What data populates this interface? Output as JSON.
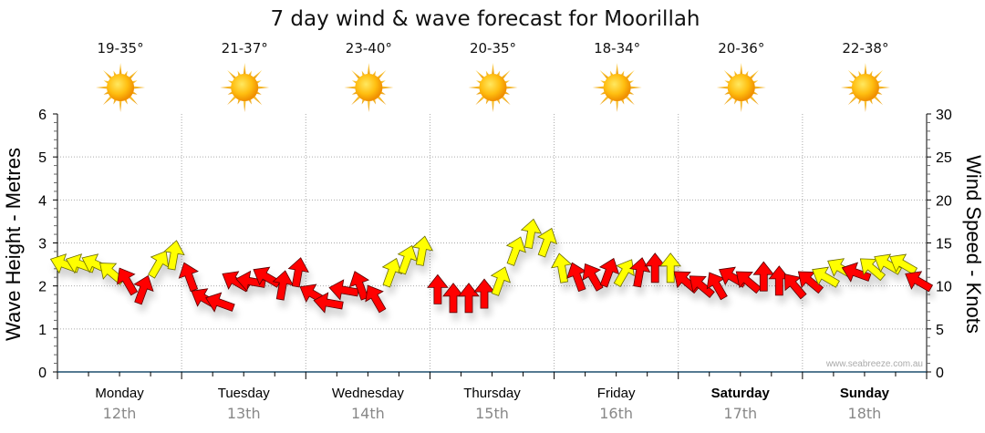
{
  "chart_data": {
    "type": "scatter",
    "title": "7 day wind & wave forecast for Moorillah",
    "ylabel_left": "Wave Height - Metres",
    "ylabel_right": "Wind Speed - Knots",
    "ylim_left": [
      0,
      6
    ],
    "ylim_right": [
      0,
      30
    ],
    "yticks_left": [
      "0",
      "1",
      "2",
      "3",
      "4",
      "5",
      "6"
    ],
    "yticks_right": [
      "0",
      "5",
      "10",
      "15",
      "20",
      "25",
      "30"
    ],
    "grid": true,
    "credit": "www.seabreeze.com.au",
    "days": [
      {
        "name": "Monday",
        "date": "12th",
        "temp": "19-35°",
        "icon": "sun-icon",
        "bold": false
      },
      {
        "name": "Tuesday",
        "date": "13th",
        "temp": "21-37°",
        "icon": "sun-icon",
        "bold": false
      },
      {
        "name": "Wednesday",
        "date": "14th",
        "temp": "23-40°",
        "icon": "sun-icon",
        "bold": false
      },
      {
        "name": "Thursday",
        "date": "15th",
        "temp": "20-35°",
        "icon": "sun-icon",
        "bold": false
      },
      {
        "name": "Friday",
        "date": "16th",
        "temp": "18-34°",
        "icon": "sun-icon",
        "bold": false
      },
      {
        "name": "Saturday",
        "date": "17th",
        "temp": "20-36°",
        "icon": "sun-icon",
        "bold": true
      },
      {
        "name": "Sunday",
        "date": "18th",
        "temp": "22-38°",
        "icon": "sun-icon",
        "bold": true
      }
    ],
    "colors": {
      "strong": "#ff0000",
      "moderate": "#ffff00",
      "outline": "#333333"
    },
    "wind_series": {
      "name": "Wind (knots, direction in degrees arrow points toward)",
      "x_hours": [
        0,
        3,
        6,
        9,
        12,
        15,
        18,
        21,
        24,
        27,
        30,
        33,
        36,
        39,
        42,
        45,
        48,
        51,
        54,
        57,
        60,
        63,
        66,
        69,
        72,
        75,
        78,
        81,
        84,
        87,
        90,
        93,
        96,
        99,
        102,
        105,
        108,
        111,
        114,
        117,
        120,
        123,
        126,
        129,
        132,
        135,
        138,
        141,
        144,
        147,
        150,
        153,
        156,
        159,
        162,
        165
      ],
      "speed_kn": [
        12.5,
        12.5,
        12.5,
        11.5,
        10.5,
        9.5,
        12.5,
        13.5,
        11,
        8.5,
        8,
        10.5,
        10.5,
        11,
        10,
        11.5,
        9,
        8,
        9.5,
        10,
        8.5,
        11.5,
        13,
        14,
        9.5,
        8.5,
        8.5,
        9,
        10.5,
        14,
        16,
        15,
        12,
        11,
        11,
        11.5,
        11.5,
        11.5,
        12,
        12,
        10.5,
        10,
        10,
        11,
        10.5,
        11,
        10.5,
        10,
        10.5,
        11,
        12,
        11.5,
        12,
        12.5,
        12.5,
        10.5
      ],
      "direction_deg": [
        290,
        290,
        295,
        310,
        330,
        20,
        30,
        10,
        340,
        300,
        290,
        300,
        280,
        300,
        10,
        10,
        300,
        280,
        280,
        340,
        330,
        20,
        20,
        10,
        0,
        0,
        0,
        0,
        20,
        20,
        10,
        20,
        350,
        340,
        330,
        20,
        30,
        10,
        0,
        0,
        310,
        310,
        330,
        300,
        310,
        0,
        0,
        320,
        310,
        300,
        300,
        290,
        310,
        300,
        300,
        300
      ],
      "category": [
        "moderate",
        "moderate",
        "moderate",
        "moderate",
        "strong",
        "strong",
        "moderate",
        "moderate",
        "strong",
        "strong",
        "strong",
        "strong",
        "strong",
        "strong",
        "strong",
        "strong",
        "strong",
        "strong",
        "strong",
        "strong",
        "strong",
        "moderate",
        "moderate",
        "moderate",
        "strong",
        "strong",
        "strong",
        "strong",
        "moderate",
        "moderate",
        "moderate",
        "moderate",
        "moderate",
        "strong",
        "strong",
        "strong",
        "moderate",
        "strong",
        "strong",
        "moderate",
        "strong",
        "strong",
        "strong",
        "strong",
        "strong",
        "strong",
        "strong",
        "strong",
        "strong",
        "moderate",
        "moderate",
        "strong",
        "moderate",
        "moderate",
        "moderate",
        "strong"
      ]
    }
  }
}
